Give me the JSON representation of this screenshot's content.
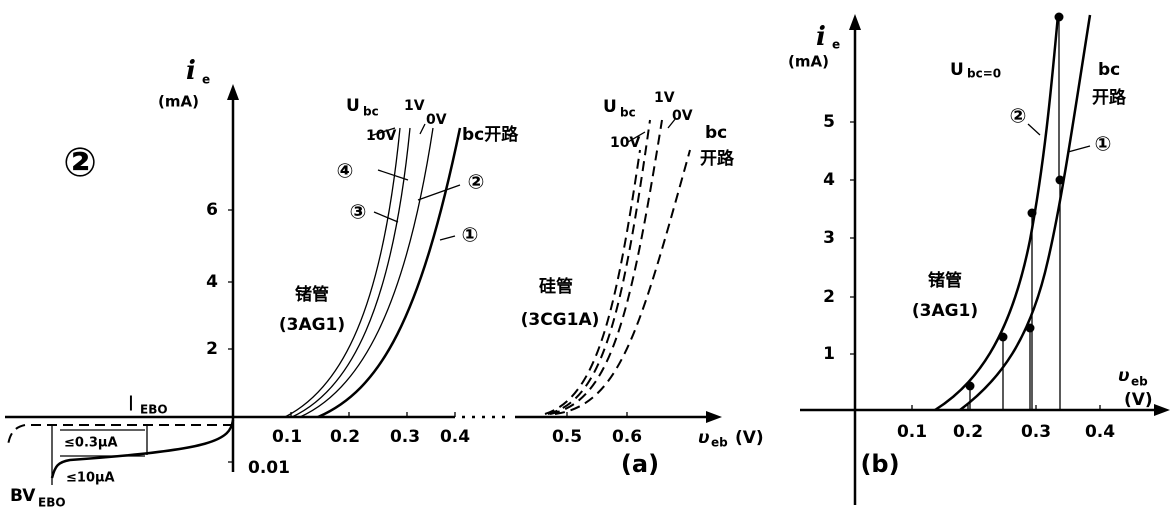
{
  "figure_label": "②",
  "panel_a": {
    "y_symbol": "i",
    "y_subscript": "e",
    "y_unit": "(mA)",
    "yticks": [
      "2",
      "4",
      "6"
    ],
    "xticks": [
      "0.1",
      "0.2",
      "0.3",
      "0.4",
      "0.5",
      "0.6"
    ],
    "neg_tick": "0.01",
    "x_symbol": "υ",
    "x_subscript": "eb",
    "x_unit": "(V)",
    "ge_ubc": {
      "symbol": "U",
      "subscript": "bc",
      "labels": [
        "10V",
        "1V",
        "0V",
        "bc开路"
      ]
    },
    "si_ubc": {
      "symbol": "U",
      "subscript": "bc",
      "labels": [
        "10V",
        "1V",
        "0V",
        "bc",
        "开路"
      ]
    },
    "curve_markers": [
      "④",
      "③",
      "②",
      "①"
    ],
    "ge_name": "锗管",
    "ge_model": "(3AG1)",
    "si_name": "硅管",
    "si_model": "(3CG1A)",
    "leakage": {
      "iebo": "I",
      "iebo_sub": "EBO",
      "small": "≤0.3μA",
      "large": "≤10μA",
      "bv": "BV",
      "bv_sub": "EBO"
    },
    "caption": "(a)"
  },
  "panel_b": {
    "y_symbol": "i",
    "y_subscript": "e",
    "y_unit": "(mA)",
    "yticks": [
      "1",
      "2",
      "3",
      "4",
      "5"
    ],
    "xticks": [
      "0.1",
      "0.2",
      "0.3",
      "0.4"
    ],
    "x_symbol": "υ",
    "x_subscript": "eb",
    "x_unit": "(V)",
    "ubc": {
      "symbol": "U",
      "label": "bc=0"
    },
    "open": [
      "bc",
      "开路"
    ],
    "curve_markers": [
      "②",
      "①"
    ],
    "ge_name": "锗管",
    "ge_model": "(3AG1)",
    "caption": "(b)"
  }
}
